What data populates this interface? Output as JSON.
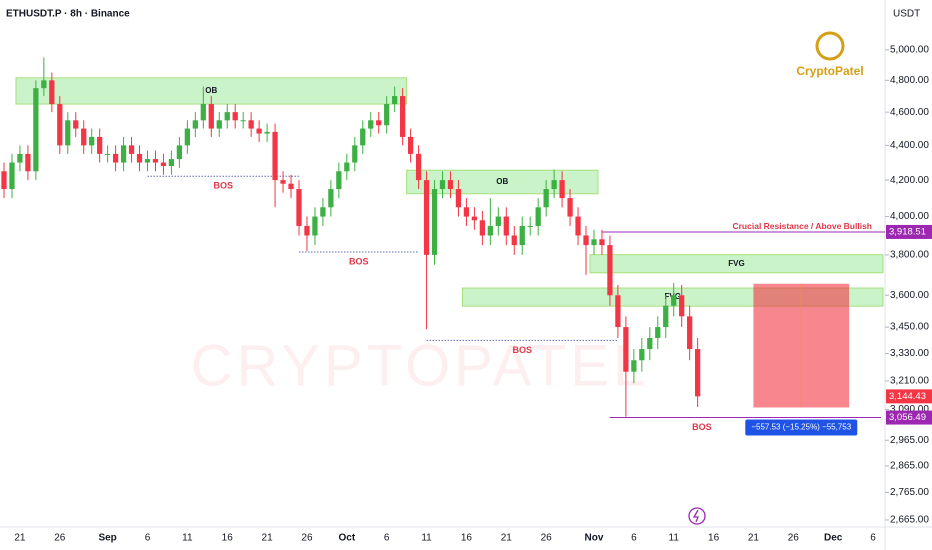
{
  "chart_data": {
    "type": "candlestick",
    "title": "ETHUSDT.P · 8h · Binance",
    "currency": "USDT",
    "logo_text": "CryptoPatel",
    "watermark": "CRYPTOPATEL",
    "log_scale": true,
    "up_color": "#3cb043",
    "down_color": "#f23645",
    "categories": [
      null,
      null,
      "21",
      null,
      null,
      null,
      null,
      "26",
      null,
      null,
      null,
      null,
      null,
      "Sep",
      null,
      null,
      null,
      null,
      "6",
      null,
      null,
      null,
      null,
      "11",
      null,
      null,
      null,
      null,
      "16",
      null,
      null,
      null,
      null,
      "21",
      null,
      null,
      null,
      null,
      "26",
      null,
      null,
      null,
      null,
      "Oct",
      null,
      null,
      null,
      null,
      "6",
      null,
      null,
      null,
      null,
      "11",
      null,
      null,
      null,
      null,
      "16",
      null,
      null,
      null,
      null,
      "21",
      null,
      null,
      null,
      null,
      "26",
      null,
      null,
      null,
      null,
      null,
      "Nov",
      null,
      null,
      null,
      null,
      "6",
      null,
      null,
      null,
      null,
      "11",
      null,
      null,
      null,
      null,
      "16",
      null,
      null,
      null,
      null,
      "21",
      null,
      null,
      null,
      null,
      "26",
      null,
      null,
      null,
      null,
      "Dec",
      null,
      null,
      null,
      null,
      "6",
      null
    ],
    "open": [
      4250,
      4150,
      4300,
      4350,
      4250,
      4750,
      4800,
      4650,
      4400,
      4550,
      4500,
      4400,
      4450,
      4350,
      4350,
      4300,
      4400,
      4350,
      4300,
      4320,
      4300,
      4280,
      4320,
      4400,
      4500,
      4550,
      4650,
      4500,
      4550,
      4600,
      4550,
      4550,
      4500,
      4470,
      4480,
      4200,
      4180,
      4150,
      3950,
      3900,
      4000,
      4050,
      4150,
      4250,
      4300,
      4400,
      4500,
      4550,
      4520,
      4650,
      4700,
      4450,
      4350,
      4200,
      3800,
      4150,
      4200,
      4150,
      4050,
      4000,
      3980,
      3900,
      3950,
      4000,
      3900,
      3850,
      3950,
      3950,
      4050,
      4150,
      4200,
      4100,
      4000,
      3900,
      3850,
      3880,
      3850,
      3600,
      3450,
      3250,
      3300,
      3350,
      3400,
      3450,
      3550,
      3600,
      3500,
      3350,
      null,
      null,
      null,
      null,
      null,
      null,
      null,
      null,
      null,
      null,
      null,
      null,
      null,
      null,
      null,
      null,
      null,
      null,
      null,
      null,
      null,
      null,
      null
    ],
    "high": [
      4300,
      4350,
      4400,
      4400,
      4800,
      4950,
      4850,
      4700,
      4600,
      4600,
      4550,
      4500,
      4500,
      4400,
      4400,
      4450,
      4450,
      4400,
      4370,
      4370,
      4350,
      4370,
      4450,
      4550,
      4600,
      4760,
      4700,
      4600,
      4650,
      4650,
      4600,
      4600,
      4550,
      4530,
      4530,
      4250,
      4230,
      4200,
      4000,
      4050,
      4100,
      4200,
      4300,
      4350,
      4450,
      4550,
      4600,
      4600,
      4700,
      4760,
      4750,
      4500,
      4400,
      4250,
      4200,
      4250,
      4250,
      4200,
      4100,
      4050,
      4030,
      4100,
      4050,
      4050,
      3950,
      4000,
      4000,
      4100,
      4200,
      4260,
      4250,
      4150,
      4050,
      3950,
      3930,
      3930,
      3900,
      3650,
      3500,
      3350,
      3400,
      3450,
      3500,
      3600,
      3660,
      3650,
      3550,
      3400,
      null,
      null,
      null,
      null,
      null,
      null,
      null,
      null,
      null,
      null,
      null,
      null,
      null,
      null,
      null,
      null,
      null,
      null,
      null,
      null,
      null,
      null,
      null
    ],
    "low": [
      4100,
      4100,
      4250,
      4200,
      4200,
      4700,
      4600,
      4350,
      4350,
      4450,
      4350,
      4350,
      4300,
      4300,
      4250,
      4250,
      4300,
      4250,
      4250,
      4250,
      4230,
      4230,
      4270,
      4350,
      4450,
      4500,
      4450,
      4450,
      4500,
      4500,
      4500,
      4450,
      4420,
      4420,
      4050,
      4130,
      4100,
      3900,
      3820,
      3850,
      3950,
      4000,
      4100,
      4200,
      4250,
      4350,
      4450,
      4470,
      4470,
      4600,
      4400,
      4300,
      4150,
      3440,
      3750,
      4100,
      4100,
      4000,
      3950,
      3930,
      3850,
      3850,
      3900,
      3850,
      3800,
      3800,
      3900,
      3900,
      4000,
      4100,
      4050,
      3950,
      3850,
      3700,
      3800,
      3800,
      3550,
      3400,
      3060,
      3200,
      3250,
      3300,
      3350,
      3400,
      3500,
      3450,
      3300,
      3100,
      null,
      null,
      null,
      null,
      null,
      null,
      null,
      null,
      null,
      null,
      null,
      null,
      null,
      null,
      null,
      null,
      null,
      null,
      null,
      null,
      null,
      null,
      null
    ],
    "close": [
      4150,
      4300,
      4350,
      4250,
      4750,
      4800,
      4650,
      4400,
      4550,
      4500,
      4400,
      4450,
      4350,
      4350,
      4300,
      4400,
      4350,
      4300,
      4320,
      4300,
      4280,
      4320,
      4400,
      4500,
      4550,
      4650,
      4500,
      4550,
      4600,
      4550,
      4550,
      4500,
      4470,
      4480,
      4200,
      4180,
      4150,
      3950,
      3900,
      4000,
      4050,
      4150,
      4250,
      4300,
      4400,
      4500,
      4550,
      4520,
      4650,
      4700,
      4450,
      4350,
      4200,
      3800,
      4150,
      4200,
      4150,
      4050,
      4000,
      3980,
      3900,
      3950,
      4000,
      3900,
      3850,
      3950,
      3950,
      4050,
      4150,
      4200,
      4100,
      4000,
      3900,
      3850,
      3880,
      3850,
      3600,
      3450,
      3250,
      3300,
      3350,
      3400,
      3450,
      3550,
      3600,
      3500,
      3350,
      3144.43,
      null,
      null,
      null,
      null,
      null,
      null,
      null,
      null,
      null,
      null,
      null,
      null,
      null,
      null,
      null,
      null,
      null,
      null,
      null,
      null,
      null,
      null,
      null
    ],
    "ylim": [
      2640,
      5345
    ],
    "yticks": [
      {
        "value": 5000,
        "label": "5,000.00"
      },
      {
        "value": 4800,
        "label": "4,800.00"
      },
      {
        "value": 4600,
        "label": "4,600.00"
      },
      {
        "value": 4400,
        "label": "4,400.00"
      },
      {
        "value": 4200,
        "label": "4,200.00"
      },
      {
        "value": 4000,
        "label": "4,000.00"
      },
      {
        "value": 3800,
        "label": "3,800.00"
      },
      {
        "value": 3600,
        "label": "3,600.00"
      },
      {
        "value": 3450,
        "label": "3,450.00"
      },
      {
        "value": 3330,
        "label": "3,330.00"
      },
      {
        "value": 3210,
        "label": "3,210.00"
      },
      {
        "value": 3090,
        "label": "3,090.00"
      },
      {
        "value": 2965,
        "label": "2,965.00"
      },
      {
        "value": 2865,
        "label": "2,865.00"
      },
      {
        "value": 2765,
        "label": "2,765.00"
      },
      {
        "value": 2665,
        "label": "2,665.00"
      }
    ],
    "zones": [
      {
        "label": "OB",
        "low": 4650,
        "high": 4816,
        "from": 2,
        "to": 50
      },
      {
        "label": "OB",
        "low": 4124,
        "high": 4256,
        "from": 51,
        "to": 74
      },
      {
        "label": "FVG",
        "low": 3710,
        "high": 3801,
        "from": 74,
        "to": 110
      },
      {
        "label": "FVG",
        "low": 3548,
        "high": 3635,
        "from": 58,
        "to": 110
      }
    ],
    "bos": [
      {
        "label": "BOS",
        "value": 4222,
        "from": 18,
        "to": 37
      },
      {
        "label": "BOS",
        "value": 3815,
        "from": 37,
        "to": 52
      },
      {
        "label": "BOS",
        "value": 3389,
        "from": 53,
        "to": 77
      },
      {
        "label": "BOS",
        "value": 3056.49,
        "from": 76,
        "to": 110,
        "color": "#9c27b0"
      }
    ],
    "resistance": {
      "label": "Crucial Resistance / Above Bullish",
      "value": 3918.51,
      "from": 75,
      "to": 110,
      "color": "#9c27b0"
    },
    "measure": {
      "high": 3656,
      "low": 3098,
      "from": 94,
      "to": 106,
      "label": "−557.53 (−15.25%) −55,753"
    },
    "price_labels": [
      {
        "value": 3918.51,
        "label": "3,918.51",
        "color": "#9c27b0"
      },
      {
        "value": 3144.43,
        "label": "3,144.43",
        "color": "#f23645"
      },
      {
        "value": 3056.49,
        "label": "3,056.49",
        "color": "#9c27b0"
      }
    ]
  }
}
